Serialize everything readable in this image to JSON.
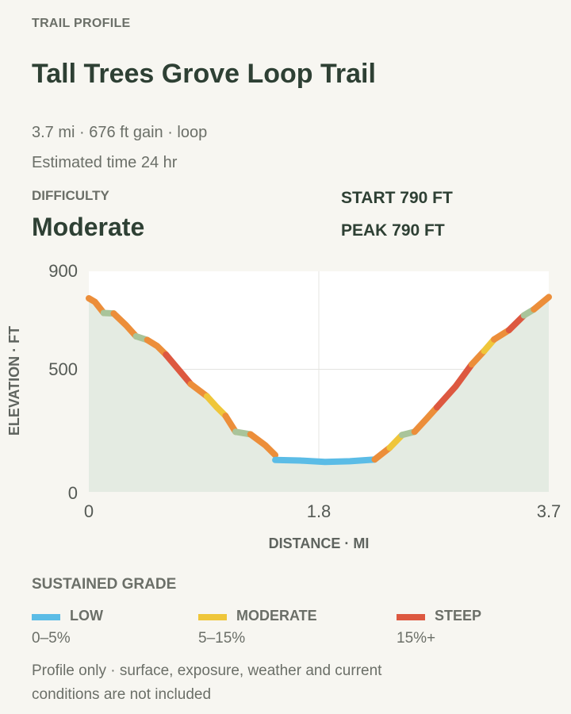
{
  "header": {
    "eyebrow": "TRAIL PROFILE",
    "title": "Tall Trees Grove Loop Trail",
    "summary": "3.7 mi · 676 ft gain · loop",
    "estimated_time": "Estimated time 24 hr"
  },
  "difficulty": {
    "label": "DIFFICULTY",
    "value": "Moderate"
  },
  "stats": {
    "start": "START 790 FT",
    "peak": "PEAK 790 FT"
  },
  "colors": {
    "low": "#5bbce6",
    "moderate": "#efc63a",
    "steep": "#dd5840",
    "mid_low": "#a9c49a",
    "orange": "#ec8e3a",
    "fill": "#e4ebe2",
    "plot_bg": "#ffffff"
  },
  "chart_data": {
    "type": "area",
    "xlabel": "DISTANCE · MI",
    "ylabel": "ELEVATION · FT",
    "xlim": [
      0,
      3.7
    ],
    "ylim": [
      0,
      900
    ],
    "x_ticks": [
      "0",
      "1.8",
      "3.7"
    ],
    "y_ticks": [
      "900",
      "500",
      "0"
    ],
    "grid": true,
    "segments": [
      {
        "x": [
          0.0,
          0.05,
          0.12
        ],
        "y": [
          790,
          775,
          730
        ],
        "grade": "orange"
      },
      {
        "x": [
          0.12,
          0.2
        ],
        "y": [
          730,
          728
        ],
        "grade": "mid_low"
      },
      {
        "x": [
          0.2,
          0.3,
          0.38
        ],
        "y": [
          728,
          680,
          635
        ],
        "grade": "orange"
      },
      {
        "x": [
          0.38,
          0.47
        ],
        "y": [
          635,
          620
        ],
        "grade": "mid_low"
      },
      {
        "x": [
          0.47,
          0.55,
          0.62
        ],
        "y": [
          620,
          595,
          560
        ],
        "grade": "orange"
      },
      {
        "x": [
          0.62,
          0.72,
          0.82
        ],
        "y": [
          560,
          500,
          440
        ],
        "grade": "steep"
      },
      {
        "x": [
          0.82,
          0.95
        ],
        "y": [
          440,
          390
        ],
        "grade": "orange"
      },
      {
        "x": [
          0.95,
          1.03,
          1.1
        ],
        "y": [
          390,
          345,
          310
        ],
        "grade": "moderate"
      },
      {
        "x": [
          1.1,
          1.18
        ],
        "y": [
          310,
          245
        ],
        "grade": "orange"
      },
      {
        "x": [
          1.18,
          1.3
        ],
        "y": [
          245,
          235
        ],
        "grade": "mid_low"
      },
      {
        "x": [
          1.3,
          1.42,
          1.5
        ],
        "y": [
          235,
          190,
          150
        ],
        "grade": "orange"
      },
      {
        "x": [
          1.5,
          1.7,
          1.9,
          2.1,
          2.3
        ],
        "y": [
          130,
          128,
          122,
          125,
          132
        ],
        "grade": "low"
      },
      {
        "x": [
          2.3,
          2.42
        ],
        "y": [
          132,
          180
        ],
        "grade": "orange"
      },
      {
        "x": [
          2.42,
          2.52
        ],
        "y": [
          180,
          232
        ],
        "grade": "moderate"
      },
      {
        "x": [
          2.52,
          2.62
        ],
        "y": [
          232,
          245
        ],
        "grade": "mid_low"
      },
      {
        "x": [
          2.62,
          2.72,
          2.8
        ],
        "y": [
          245,
          300,
          345
        ],
        "grade": "orange"
      },
      {
        "x": [
          2.8,
          2.95,
          3.08
        ],
        "y": [
          345,
          430,
          520
        ],
        "grade": "steep"
      },
      {
        "x": [
          3.08,
          3.18
        ],
        "y": [
          520,
          575
        ],
        "grade": "orange"
      },
      {
        "x": [
          3.18,
          3.26
        ],
        "y": [
          575,
          622
        ],
        "grade": "moderate"
      },
      {
        "x": [
          3.26,
          3.38
        ],
        "y": [
          622,
          660
        ],
        "grade": "orange"
      },
      {
        "x": [
          3.38,
          3.5
        ],
        "y": [
          660,
          720
        ],
        "grade": "steep"
      },
      {
        "x": [
          3.5,
          3.58
        ],
        "y": [
          720,
          745
        ],
        "grade": "mid_low"
      },
      {
        "x": [
          3.58,
          3.7
        ],
        "y": [
          745,
          795
        ],
        "grade": "orange"
      }
    ]
  },
  "legend": {
    "title": "SUSTAINED GRADE",
    "items": [
      {
        "name": "LOW",
        "range": "0–5%",
        "grade": "low"
      },
      {
        "name": "MODERATE",
        "range": "5–15%",
        "grade": "moderate"
      },
      {
        "name": "STEEP",
        "range": "15%+",
        "grade": "steep"
      }
    ]
  },
  "note": "Profile only · surface, exposure, weather and current conditions are not included"
}
